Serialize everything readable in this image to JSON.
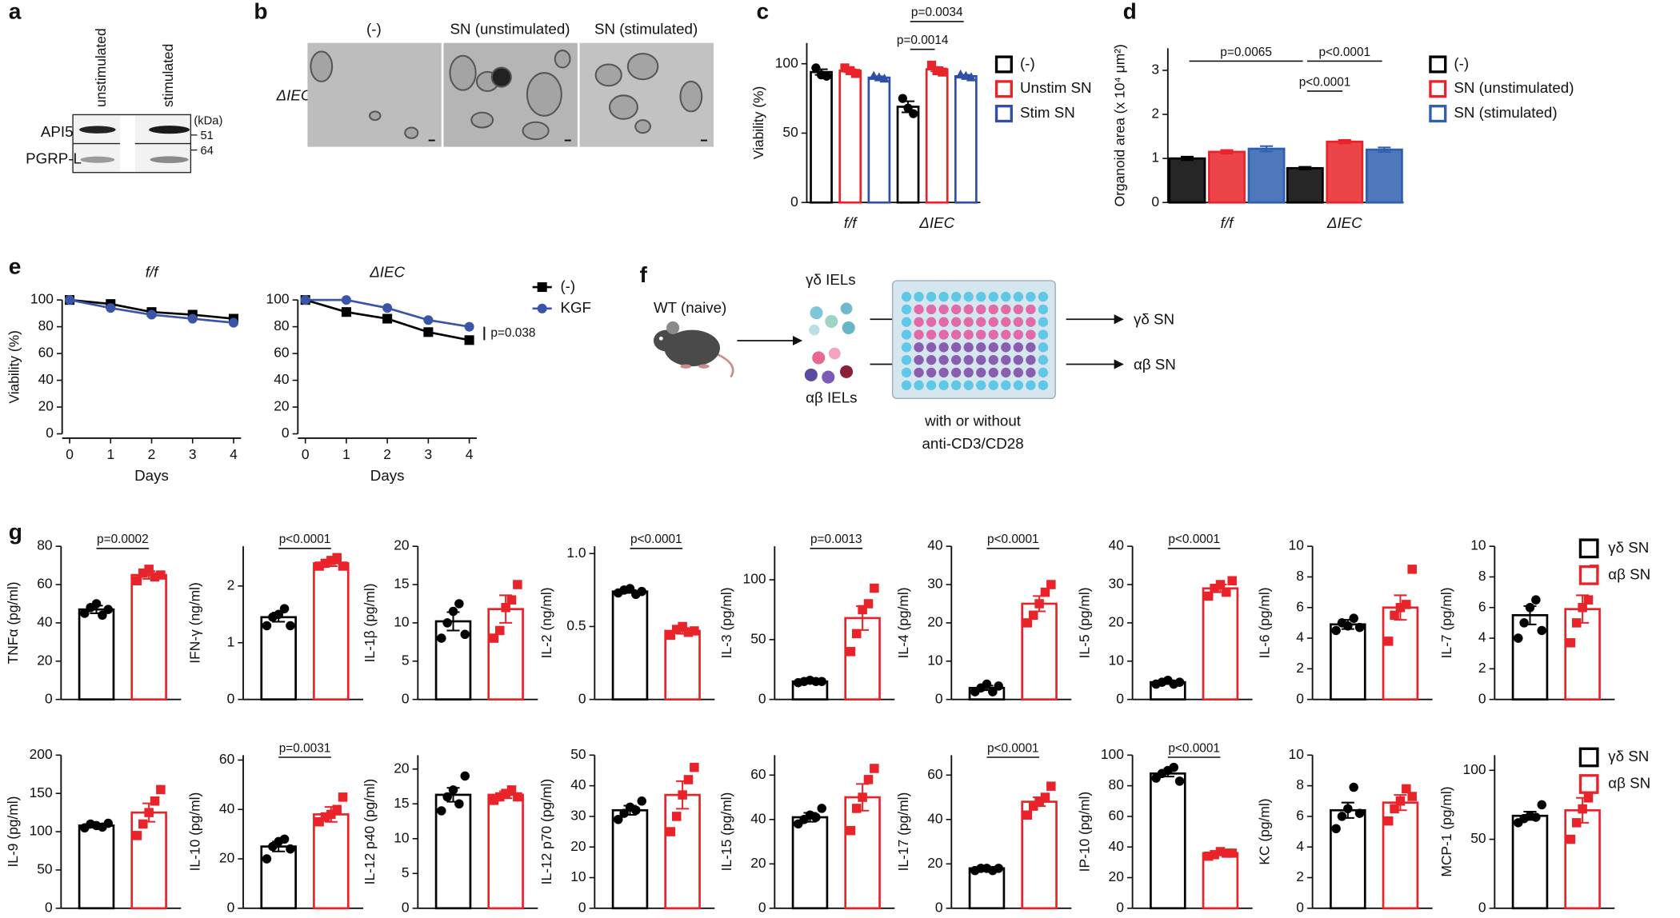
{
  "letters": [
    "a",
    "b",
    "c",
    "d",
    "e",
    "f",
    "g"
  ],
  "blot": {
    "lanes": [
      "unstimulated",
      "stimulated"
    ],
    "rows": [
      "API5",
      "PGRP-L"
    ],
    "unit": "(kDa)",
    "markers": [
      51,
      64
    ]
  },
  "micrographs": {
    "columns": [
      "(-)",
      "SN (unstimulated)",
      "SN (stimulated)"
    ],
    "row": "ΔIEC"
  },
  "schematic": {
    "source": "WT (naive)",
    "cells": [
      "γδ IELs",
      "αβ IELs"
    ],
    "condition": [
      "with or without",
      "anti-CD3/CD28"
    ],
    "outputs": [
      "γδ SN",
      "αβ SN"
    ]
  },
  "g_legend": [
    {
      "name": "γδ SN",
      "color": "#000000",
      "marker": "circle"
    },
    {
      "name": "αβ SN",
      "color": "#e8242a",
      "marker": "square"
    }
  ],
  "chart_data": [
    {
      "type": "bar",
      "ylabel": "Viability (%)",
      "categories": [
        "f/f",
        "ΔIEC"
      ],
      "ylim": [
        0,
        115
      ],
      "yticks": [
        0,
        50,
        100
      ],
      "series": [
        {
          "name": "(-)",
          "color": "#000000",
          "marker": "circle",
          "values": [
            94,
            69
          ],
          "errors": [
            2,
            4
          ],
          "points": [
            [
              97,
              92,
              91
            ],
            [
              75,
              68,
              64
            ]
          ]
        },
        {
          "name": "Unstim SN",
          "color": "#e8242a",
          "marker": "square",
          "values": [
            95,
            96
          ],
          "errors": [
            1,
            1.5
          ],
          "points": [
            [
              97,
              95,
              93
            ],
            [
              99,
              95,
              94
            ]
          ]
        },
        {
          "name": "Stim SN",
          "color": "#2f4fa8",
          "marker": "triangle",
          "values": [
            90,
            91
          ],
          "errors": [
            1,
            1
          ],
          "points": [
            [
              91,
              90,
              89
            ],
            [
              92,
              91,
              90
            ]
          ]
        }
      ],
      "annotations": [
        "p=0.0034",
        "p=0.0014"
      ]
    },
    {
      "type": "bar",
      "bar_style": "filled",
      "ylabel": "Organoid area (x 10⁴ μm²)",
      "categories": [
        "f/f",
        "ΔIEC"
      ],
      "ylim": [
        0,
        3.5
      ],
      "yticks": [
        0,
        1,
        2,
        3
      ],
      "series": [
        {
          "name": "(-)",
          "color": "#000000",
          "values": [
            1.0,
            0.78
          ],
          "errors": [
            0.04,
            0.03
          ]
        },
        {
          "name": "SN (unstimulated)",
          "color": "#e8242a",
          "values": [
            1.15,
            1.38
          ],
          "errors": [
            0.04,
            0.04
          ]
        },
        {
          "name": "SN (stimulated)",
          "color": "#2f5fb0",
          "values": [
            1.22,
            1.2
          ],
          "errors": [
            0.06,
            0.05
          ]
        }
      ],
      "annotations": [
        "p=0.0065",
        "p<0.0001",
        "p<0.0001"
      ]
    },
    {
      "type": "line",
      "title": "f/f",
      "ylabel": "Viability (%)",
      "xlabel": "Days",
      "x": [
        0,
        1,
        2,
        3,
        4
      ],
      "xlim": [
        0,
        4
      ],
      "xticks": [
        0,
        1,
        2,
        3,
        4
      ],
      "ylim": [
        0,
        100
      ],
      "yticks": [
        0,
        20,
        40,
        60,
        80,
        100
      ],
      "series": [
        {
          "color": "#000000",
          "marker": "square",
          "values": [
            100,
            97,
            91,
            89,
            86
          ]
        },
        {
          "color": "#3a55a8",
          "marker": "circle",
          "values": [
            100,
            94,
            89,
            86,
            83
          ]
        }
      ]
    },
    {
      "type": "line",
      "title": "ΔIEC",
      "xlabel": "Days",
      "x": [
        0,
        1,
        2,
        3,
        4
      ],
      "xlim": [
        0,
        4
      ],
      "xticks": [
        0,
        1,
        2,
        3,
        4
      ],
      "ylim": [
        0,
        100
      ],
      "yticks": [
        0,
        20,
        40,
        60,
        80,
        100
      ],
      "series": [
        {
          "name": "(-)",
          "color": "#000000",
          "marker": "square",
          "values": [
            100,
            91,
            86,
            76,
            70
          ]
        },
        {
          "name": "KGF",
          "color": "#3a55a8",
          "marker": "circle",
          "values": [
            100,
            100,
            94,
            85,
            80
          ]
        }
      ],
      "annotation": "p=0.038"
    },
    {
      "type": "bar",
      "ylabel": "TNFα (pg/ml)",
      "ylim": [
        0,
        80
      ],
      "yticks": [
        0,
        20,
        40,
        60,
        80
      ],
      "values": [
        47,
        65
      ],
      "errors": [
        2,
        2
      ],
      "points": [
        [
          45,
          48,
          50,
          44,
          47
        ],
        [
          62,
          66,
          68,
          64,
          65
        ]
      ],
      "annotation": "p=0.0002"
    },
    {
      "type": "bar",
      "ylabel": "IFN-γ (ng/ml)",
      "ylim": [
        0,
        2.7
      ],
      "yticks": [
        0,
        1,
        2
      ],
      "values": [
        1.45,
        2.4
      ],
      "errors": [
        0.08,
        0.05
      ],
      "points": [
        [
          1.3,
          1.45,
          1.5,
          1.6,
          1.3
        ],
        [
          2.35,
          2.4,
          2.45,
          2.5,
          2.35
        ]
      ],
      "annotation": "p<0.0001"
    },
    {
      "type": "bar",
      "ylabel": "IL-1β (pg/ml)",
      "ylim": [
        0,
        20
      ],
      "yticks": [
        0,
        5,
        10,
        15,
        20
      ],
      "values": [
        10.2,
        11.8
      ],
      "errors": [
        1.2,
        1.8
      ],
      "points": [
        [
          8,
          10,
          11.5,
          12.5,
          8.5
        ],
        [
          8,
          9,
          12,
          13,
          15
        ]
      ]
    },
    {
      "type": "bar",
      "ylabel": "IL-2 (ng/ml)",
      "ylim": [
        0,
        1.05
      ],
      "yticks": [
        0,
        0.5,
        {
          "value": 1,
          "label": "1.0"
        }
      ],
      "values": [
        0.74,
        0.47
      ],
      "errors": [
        0.01,
        0.02
      ],
      "points": [
        [
          0.73,
          0.75,
          0.76,
          0.72,
          0.74
        ],
        [
          0.44,
          0.48,
          0.5,
          0.46,
          0.47
        ]
      ],
      "annotation": "p<0.0001"
    },
    {
      "type": "bar",
      "ylabel": "IL-3 (pg/ml)",
      "ylim": [
        0,
        128
      ],
      "yticks": [
        0,
        50,
        100
      ],
      "values": [
        15,
        68
      ],
      "errors": [
        1,
        10
      ],
      "points": [
        [
          14,
          15,
          16,
          15,
          15
        ],
        [
          40,
          55,
          75,
          80,
          93
        ]
      ],
      "annotation": "p=0.0013"
    },
    {
      "type": "bar",
      "ylabel": "IL-4 (pg/ml)",
      "ylim": [
        0,
        40
      ],
      "yticks": [
        0,
        10,
        20,
        30,
        40
      ],
      "values": [
        3,
        25
      ],
      "errors": [
        0.6,
        2
      ],
      "points": [
        [
          2,
          3,
          4,
          2,
          3.5
        ],
        [
          20,
          22,
          25,
          28,
          30
        ]
      ],
      "annotation": "p<0.0001"
    },
    {
      "type": "bar",
      "ylabel": "IL-5 (pg/ml)",
      "ylim": [
        0,
        40
      ],
      "yticks": [
        0,
        10,
        20,
        30,
        40
      ],
      "values": [
        4.5,
        29
      ],
      "errors": [
        0.5,
        1
      ],
      "points": [
        [
          4,
          4.5,
          5,
          4,
          4.5
        ],
        [
          27,
          29,
          30,
          28,
          31
        ]
      ],
      "annotation": "p<0.0001"
    },
    {
      "type": "bar",
      "ylabel": "IL-6 (pg/ml)",
      "ylim": [
        0,
        10
      ],
      "yticks": [
        0,
        2,
        4,
        6,
        8,
        10
      ],
      "values": [
        4.9,
        6.0
      ],
      "errors": [
        0.3,
        0.8
      ],
      "points": [
        [
          4.5,
          5,
          4.8,
          5.3,
          4.7
        ],
        [
          3.8,
          5.5,
          6,
          6.2,
          8.5
        ]
      ]
    },
    {
      "type": "bar",
      "ylabel": "IL-7 (pg/ml)",
      "ylim": [
        0,
        10
      ],
      "yticks": [
        0,
        2,
        4,
        6,
        8,
        10
      ],
      "values": [
        5.5,
        5.9
      ],
      "errors": [
        0.6,
        0.9
      ],
      "points": [
        [
          4,
          5,
          6,
          6.5,
          4.5
        ],
        [
          3.7,
          5,
          6,
          6.5,
          8.5
        ]
      ]
    },
    {
      "type": "bar",
      "ylabel": "IL-9 (pg/ml)",
      "ylim": [
        0,
        200
      ],
      "yticks": [
        0,
        50,
        100,
        150,
        200
      ],
      "values": [
        108,
        125
      ],
      "errors": [
        2,
        12
      ],
      "points": [
        [
          105,
          110,
          108,
          106,
          111
        ],
        [
          95,
          110,
          125,
          140,
          155
        ]
      ]
    },
    {
      "type": "bar",
      "ylabel": "IL-10 (pg/ml)",
      "ylim": [
        0,
        62
      ],
      "yticks": [
        0,
        20,
        40,
        60
      ],
      "values": [
        25,
        38
      ],
      "errors": [
        2,
        3
      ],
      "points": [
        [
          20,
          25,
          27,
          28,
          24
        ],
        [
          35,
          37,
          38,
          40,
          45
        ]
      ],
      "annotation": "p=0.0031"
    },
    {
      "type": "bar",
      "ylabel": "IL-12 p40 (pg/ml)",
      "ylim": [
        0,
        22
      ],
      "yticks": [
        0,
        5,
        10,
        15,
        20
      ],
      "values": [
        16.3,
        16.3
      ],
      "errors": [
        1,
        0.5
      ],
      "points": [
        [
          14,
          16,
          17,
          15,
          19
        ],
        [
          15.5,
          16,
          16.5,
          17,
          16
        ]
      ]
    },
    {
      "type": "bar",
      "ylabel": "IL-12 p70 (pg/ml)",
      "ylim": [
        0,
        50
      ],
      "yticks": [
        0,
        10,
        20,
        30,
        40,
        50
      ],
      "values": [
        32,
        37
      ],
      "errors": [
        1.5,
        4.5
      ],
      "points": [
        [
          29,
          31,
          33,
          32,
          35
        ],
        [
          25,
          30,
          37,
          42,
          46
        ]
      ]
    },
    {
      "type": "bar",
      "ylabel": "IL-15 (pg/ml)",
      "ylim": [
        0,
        69
      ],
      "yticks": [
        0,
        20,
        40,
        60
      ],
      "values": [
        41,
        50
      ],
      "errors": [
        2,
        6
      ],
      "points": [
        [
          38,
          40,
          42,
          41,
          45
        ],
        [
          35,
          45,
          50,
          58,
          63
        ]
      ]
    },
    {
      "type": "bar",
      "ylabel": "IL-17 (pg/ml)",
      "ylim": [
        0,
        69
      ],
      "yticks": [
        0,
        20,
        40,
        60
      ],
      "values": [
        18,
        48
      ],
      "errors": [
        0.5,
        2
      ],
      "points": [
        [
          17,
          18,
          18,
          17,
          18
        ],
        [
          42,
          46,
          48,
          50,
          55
        ]
      ],
      "annotation": "p<0.0001"
    },
    {
      "type": "bar",
      "ylabel": "IP-10 (pg/ml)",
      "ylim": [
        0,
        100
      ],
      "yticks": [
        0,
        20,
        40,
        60,
        80,
        100
      ],
      "values": [
        88,
        36
      ],
      "errors": [
        2,
        1
      ],
      "points": [
        [
          85,
          88,
          90,
          92,
          83
        ],
        [
          34,
          35,
          37,
          36,
          36
        ]
      ],
      "annotation": "p<0.0001"
    },
    {
      "type": "bar",
      "ylabel": "KC (pg/ml)",
      "ylim": [
        0,
        10
      ],
      "yticks": [
        0,
        2,
        4,
        6,
        8,
        10
      ],
      "values": [
        6.4,
        6.9
      ],
      "errors": [
        0.5,
        0.5
      ],
      "points": [
        [
          5.2,
          6,
          6.5,
          7.9,
          6.2
        ],
        [
          5.7,
          6.5,
          7,
          7.8,
          7.3
        ]
      ]
    },
    {
      "type": "bar",
      "ylabel": "MCP-1 (pg/ml)",
      "ylim": [
        0,
        111
      ],
      "yticks": [
        0,
        50,
        100
      ],
      "values": [
        67,
        71
      ],
      "errors": [
        3,
        9
      ],
      "points": [
        [
          62,
          65,
          67,
          66,
          75
        ],
        [
          50,
          62,
          72,
          80,
          90
        ]
      ]
    }
  ]
}
